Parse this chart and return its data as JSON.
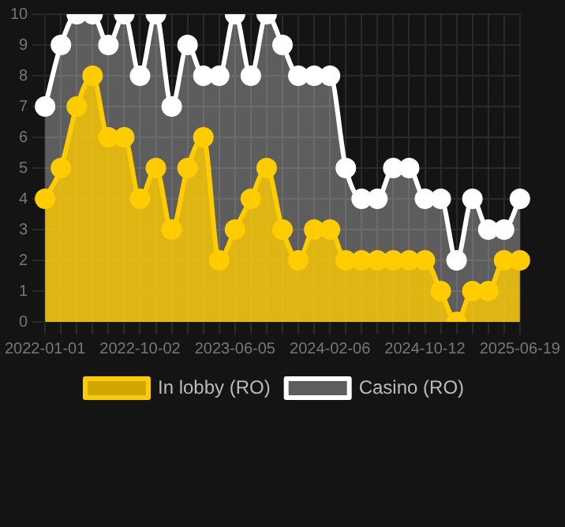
{
  "chart_data": {
    "type": "area",
    "categories": [
      "2022-01-01",
      null,
      null,
      null,
      null,
      null,
      "2022-10-02",
      null,
      null,
      null,
      null,
      null,
      "2023-06-05",
      null,
      null,
      null,
      null,
      null,
      "2024-02-06",
      null,
      null,
      null,
      null,
      null,
      "2024-10-12",
      null,
      null,
      null,
      null,
      null,
      "2025-06-19"
    ],
    "series": [
      {
        "name": "In lobby (RO)",
        "color": "#ffcc00",
        "values": [
          4,
          5,
          7,
          8,
          6,
          6,
          4,
          5,
          3,
          5,
          6,
          2,
          3,
          4,
          5,
          3,
          2,
          3,
          3,
          2,
          2,
          2,
          2,
          2,
          2,
          1,
          0,
          1,
          1,
          2,
          2
        ]
      },
      {
        "name": "Casino (RO)",
        "color": "#ffffff",
        "values": [
          7,
          9,
          10,
          10,
          9,
          10,
          8,
          10,
          7,
          9,
          8,
          8,
          10,
          8,
          10,
          9,
          8,
          8,
          8,
          5,
          4,
          4,
          5,
          5,
          4,
          4,
          2,
          4,
          3,
          3,
          4
        ]
      }
    ],
    "ylim": [
      0,
      10
    ],
    "yticks": [
      0,
      1,
      2,
      3,
      4,
      5,
      6,
      7,
      8,
      9,
      10
    ],
    "grid": true,
    "legend": "bottom",
    "marker": "circle",
    "line_style": "solid"
  }
}
